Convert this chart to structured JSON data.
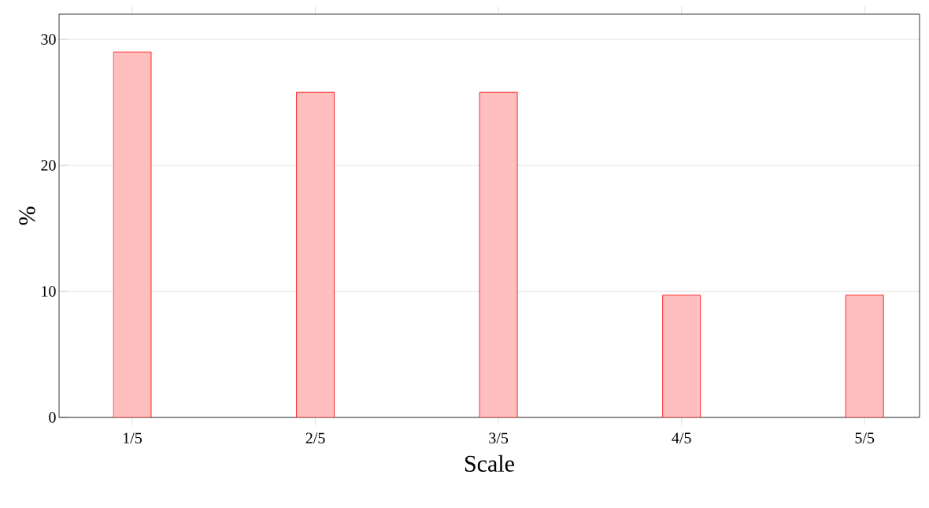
{
  "chart_data": {
    "type": "bar",
    "xlabel": "Scale",
    "ylabel": "%",
    "categories": [
      "1/5",
      "2/5",
      "3/5",
      "4/5",
      "5/5"
    ],
    "values": [
      29,
      25.8,
      25.8,
      9.7,
      9.7
    ],
    "color": "#ff0000",
    "ylim": [
      0,
      32
    ],
    "yticks": [
      0,
      10,
      20,
      30
    ],
    "grid": "y"
  }
}
